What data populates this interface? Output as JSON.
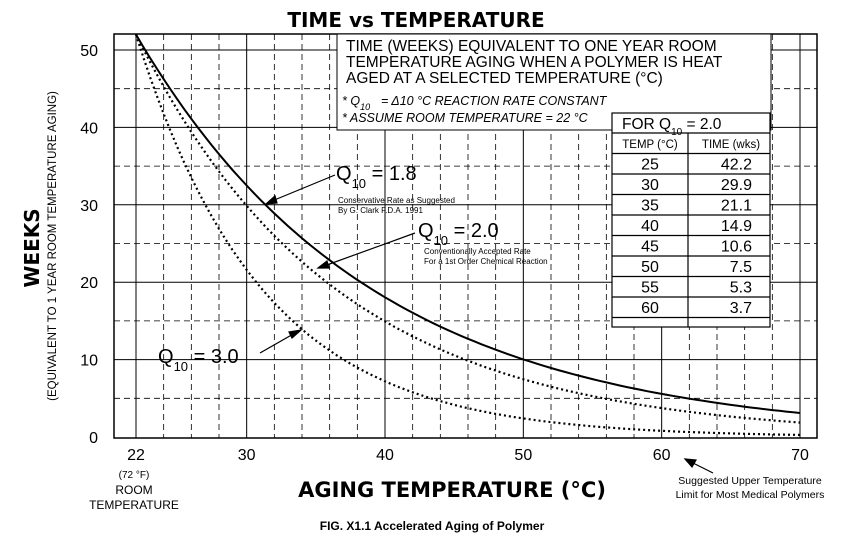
{
  "chart_data": {
    "type": "line",
    "title": "TIME vs TEMPERATURE",
    "xlabel": "AGING TEMPERATURE (°C)",
    "ylabel": "WEEKS",
    "ylabel_sub": "(EQUIVALENT TO 1 YEAR ROOM TEMPERATURE AGING)",
    "caption": "FIG. X1.1 Accelerated Aging of Polymer",
    "xlim": [
      22,
      70
    ],
    "ylim": [
      0,
      52
    ],
    "x_ticks": [
      22,
      30,
      40,
      50,
      60,
      70
    ],
    "y_ticks": [
      0,
      10,
      20,
      30,
      40,
      50
    ],
    "x_grid": [
      22,
      24,
      26,
      28,
      30,
      32,
      34,
      36,
      38,
      40,
      42,
      44,
      46,
      48,
      50,
      52,
      54,
      56,
      58,
      60,
      62,
      64,
      66,
      68,
      70
    ],
    "y_grid_dashed": [
      5,
      15,
      25,
      35,
      45
    ],
    "y_grid_solid": [
      10,
      20,
      30,
      40,
      50
    ],
    "room_label": {
      "line1": "(72 °F)",
      "line2": "ROOM",
      "line3": "TEMPERATURE"
    },
    "upper_limit_note": {
      "line1": "Suggested Upper Temperature",
      "line2": "Limit for Most Medical Polymers"
    },
    "info_box": {
      "line1": "TIME (WEEKS) EQUIVALENT TO ONE YEAR ROOM",
      "line2": "TEMPERATURE AGING WHEN A POLYMER IS HEAT",
      "line3": "AGED AT A SELECTED TEMPERATURE (°C)",
      "note1": "= Δ10 °C REACTION RATE CONSTANT",
      "note2": "* ASSUME ROOM TEMPERATURE = 22 °C"
    },
    "series": [
      {
        "name": "Q10 = 1.8",
        "q10": 1.8,
        "style": "solid",
        "note1": "Conservative Rate as Suggested",
        "note2": "By G. Clark F.D.A. 1991"
      },
      {
        "name": "Q10 = 2.0",
        "q10": 2.0,
        "style": "dotted",
        "note1": "Conventionally Accepted Rate",
        "note2": "For a 1st Order Chemical Reaction"
      },
      {
        "name": "Q10 = 3.0",
        "q10": 3.0,
        "style": "dotted"
      }
    ],
    "table": {
      "title": "FOR Q10 = 2.0",
      "headers": [
        "TEMP (°C)",
        "TIME (wks)"
      ],
      "rows": [
        [
          "25",
          "42.2"
        ],
        [
          "30",
          "29.9"
        ],
        [
          "35",
          "21.1"
        ],
        [
          "40",
          "14.9"
        ],
        [
          "45",
          "10.6"
        ],
        [
          "50",
          "7.5"
        ],
        [
          "55",
          "5.3"
        ],
        [
          "60",
          "3.7"
        ]
      ]
    }
  }
}
